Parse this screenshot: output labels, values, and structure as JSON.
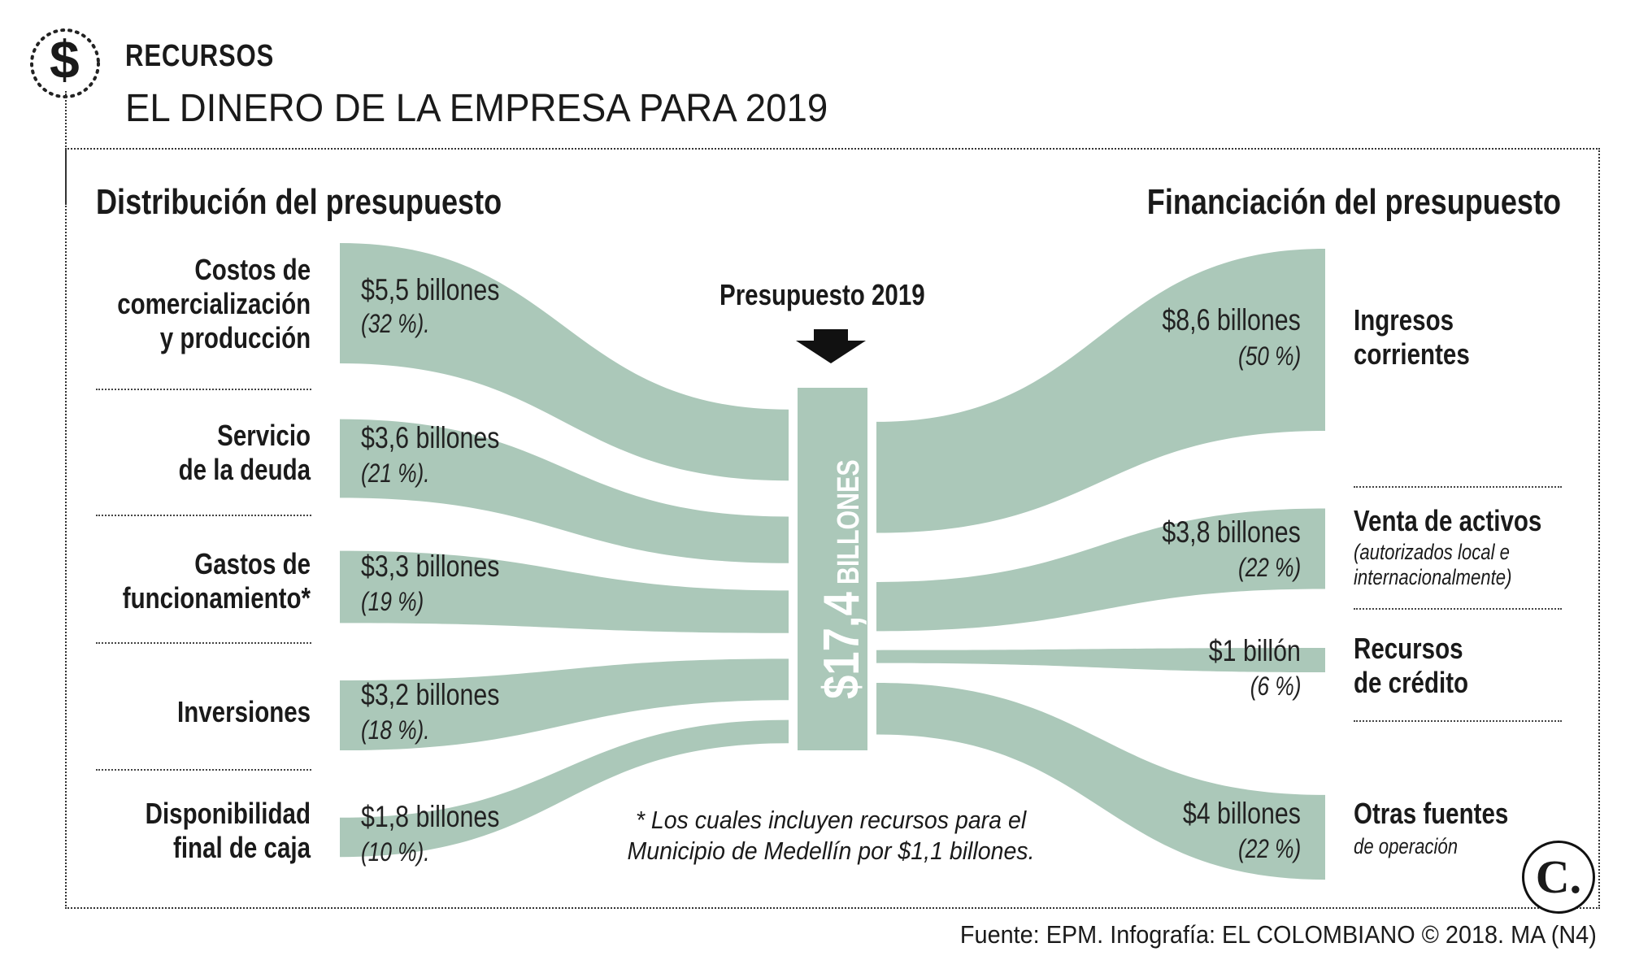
{
  "header": {
    "icon_symbol": "$",
    "kicker": "RECURSOS",
    "title": "EL DINERO DE LA EMPRESA PARA 2019"
  },
  "left_heading": "Distribución del presupuesto",
  "right_heading": "Financiación del presupuesto",
  "center": {
    "label": "Presupuesto 2019",
    "total_amount": "$17,4",
    "total_unit": "BILLONES",
    "total_value": 17.4
  },
  "distribution": [
    {
      "label_lines": [
        "Costos de",
        "comercialización",
        "y producción"
      ],
      "amount": "$5,5 billones",
      "pct": "(32 %).",
      "value": 5.5
    },
    {
      "label_lines": [
        "Servicio",
        "de la deuda"
      ],
      "amount": "$3,6 billones",
      "pct": "(21 %).",
      "value": 3.6
    },
    {
      "label_lines": [
        "Gastos de",
        "funcionamiento*"
      ],
      "amount": "$3,3 billones",
      "pct": "(19 %)",
      "value": 3.3
    },
    {
      "label_lines": [
        "Inversiones"
      ],
      "amount": "$3,2 billones",
      "pct": "(18 %).",
      "value": 3.2
    },
    {
      "label_lines": [
        "Disponibilidad",
        "final de caja"
      ],
      "amount": "$1,8 billones",
      "pct": "(10 %).",
      "value": 1.8
    }
  ],
  "financing": [
    {
      "label_lines": [
        "Ingresos",
        "corrientes"
      ],
      "sub_lines": [],
      "amount": "$8,6 billones",
      "pct": "(50 %)",
      "value": 8.6
    },
    {
      "label_lines": [
        "Venta de activos"
      ],
      "sub_lines": [
        "(autorizados local e",
        "internacionalmente)"
      ],
      "amount": "$3,8 billones",
      "pct": "(22 %)",
      "value": 3.8
    },
    {
      "label_lines": [
        "Recursos",
        "de crédito"
      ],
      "sub_lines": [],
      "amount": "$1 billón",
      "pct": "(6 %)",
      "value": 1.0
    },
    {
      "label_lines": [
        "Otras fuentes"
      ],
      "sub_lines": [
        "de operación"
      ],
      "amount": "$4 billones",
      "pct": "(22 %)",
      "value": 4.0
    }
  ],
  "footnote_lines": [
    "* Los cuales incluyen recursos para el",
    "Municipio de Medellín por $1,1 billones."
  ],
  "logo_letter": "C.",
  "source": "Fuente: EPM. Infografía: EL COLOMBIANO © 2018. MA (N4)",
  "colors": {
    "flow": "#abc8b9",
    "text": "#1a1a1a",
    "arrow": "#111111"
  }
}
